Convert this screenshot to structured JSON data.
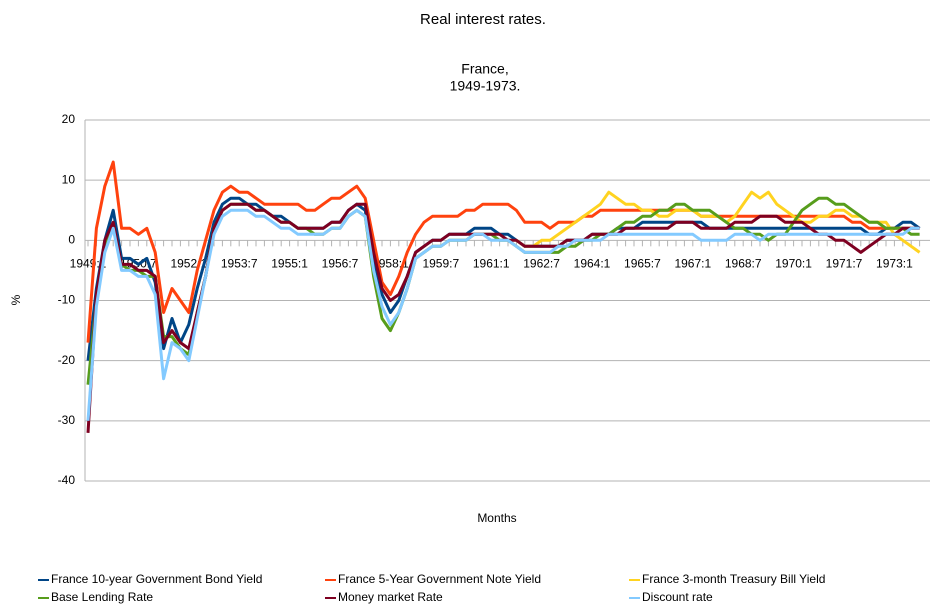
{
  "chart_data": {
    "type": "line",
    "title": "Real interest rates.",
    "subtitle": [
      "France,",
      "1949-1973."
    ],
    "x_label": "Months",
    "y_label": "%",
    "categories": [
      "1949:1",
      null,
      null,
      null,
      null,
      null,
      "1950:7",
      null,
      null,
      null,
      null,
      null,
      "1952:1",
      null,
      null,
      null,
      null,
      null,
      "1953:7",
      null,
      null,
      null,
      null,
      null,
      "1955:1",
      null,
      null,
      null,
      null,
      null,
      "1956:7",
      null,
      null,
      null,
      null,
      null,
      "1958:1",
      null,
      null,
      null,
      null,
      null,
      "1959:7",
      null,
      null,
      null,
      null,
      null,
      "1961:1",
      null,
      null,
      null,
      null,
      null,
      "1962:7",
      null,
      null,
      null,
      null,
      null,
      "1964:1",
      null,
      null,
      null,
      null,
      null,
      "1965:7",
      null,
      null,
      null,
      null,
      null,
      "1967:1",
      null,
      null,
      null,
      null,
      null,
      "1968:7",
      null,
      null,
      null,
      null,
      null,
      "1970:1",
      null,
      null,
      null,
      null,
      null,
      "1971:7",
      null,
      null,
      null,
      null,
      null,
      "1973:1",
      null,
      null,
      null
    ],
    "ylim": [
      -40,
      20
    ],
    "yticks": [
      20,
      10,
      0,
      -10,
      -20,
      -30,
      -40
    ],
    "grid": true,
    "series": [
      {
        "name": "France 10-year Government Bond Yield",
        "color": "#004586",
        "values": [
          -20,
          -8,
          0,
          5,
          -3,
          -3,
          -4,
          -3,
          -7,
          -18,
          -13,
          -17,
          -14,
          -8,
          -3,
          3,
          6,
          7,
          7,
          6,
          6,
          5,
          4,
          4,
          3,
          2,
          2,
          2,
          2,
          3,
          3,
          5,
          6,
          5,
          -3,
          -9,
          -12,
          -10,
          -6,
          -2,
          -1,
          0,
          0,
          1,
          1,
          1,
          2,
          2,
          2,
          1,
          1,
          0,
          -1,
          -1,
          -1,
          -1,
          -1,
          0,
          0,
          0,
          1,
          1,
          1,
          2,
          2,
          2,
          3,
          3,
          3,
          3,
          3,
          3,
          3,
          3,
          2,
          2,
          2,
          2,
          2,
          2,
          2,
          2,
          2,
          2,
          2,
          2,
          2,
          2,
          2,
          2,
          2,
          2,
          2,
          1,
          1,
          2,
          2,
          3,
          3,
          2
        ]
      },
      {
        "name": "France 5-Year Government Note Yield",
        "color": "#ff420e",
        "values": [
          -17,
          2,
          9,
          13,
          2,
          2,
          1,
          2,
          -2,
          -12,
          -8,
          -10,
          -12,
          -5,
          0,
          5,
          8,
          9,
          8,
          8,
          7,
          6,
          6,
          6,
          6,
          6,
          5,
          5,
          6,
          7,
          7,
          8,
          9,
          7,
          0,
          -7,
          -9,
          -6,
          -2,
          1,
          3,
          4,
          4,
          4,
          4,
          5,
          5,
          6,
          6,
          6,
          6,
          5,
          3,
          3,
          3,
          2,
          3,
          3,
          3,
          4,
          4,
          5,
          5,
          5,
          5,
          5,
          5,
          5,
          5,
          5,
          5,
          5,
          5,
          4,
          4,
          4,
          4,
          4,
          4,
          4,
          4,
          4,
          4,
          4,
          4,
          4,
          4,
          4,
          4,
          4,
          4,
          3,
          3,
          2,
          2,
          2,
          2,
          2,
          2,
          2
        ]
      },
      {
        "name": "France 3-month Treasury Bill Yield",
        "color": "#ffd320",
        "values": [
          null,
          null,
          null,
          null,
          null,
          null,
          null,
          null,
          null,
          null,
          null,
          null,
          null,
          null,
          null,
          null,
          null,
          null,
          null,
          null,
          null,
          null,
          null,
          null,
          null,
          null,
          null,
          null,
          null,
          null,
          null,
          null,
          null,
          null,
          null,
          null,
          null,
          null,
          null,
          null,
          null,
          null,
          null,
          null,
          null,
          null,
          null,
          null,
          null,
          null,
          null,
          0,
          -1,
          -1,
          0,
          0,
          1,
          2,
          3,
          4,
          5,
          6,
          8,
          7,
          6,
          6,
          5,
          5,
          4,
          4,
          5,
          5,
          5,
          4,
          4,
          4,
          3,
          4,
          6,
          8,
          7,
          8,
          6,
          5,
          4,
          3,
          3,
          4,
          4,
          5,
          5,
          4,
          4,
          3,
          3,
          3,
          1,
          0,
          -1,
          -2
        ]
      },
      {
        "name": "Base Lending Rate",
        "color": "#579d1c",
        "values": [
          -24,
          -10,
          -1,
          2,
          -4,
          -5,
          -5,
          -6,
          -6,
          -16,
          -16,
          -18,
          -19,
          -12,
          -6,
          2,
          5,
          6,
          6,
          6,
          5,
          5,
          4,
          3,
          3,
          2,
          2,
          1,
          1,
          2,
          2,
          4,
          5,
          4,
          -6,
          -13,
          -15,
          -12,
          -8,
          -3,
          -2,
          -1,
          -1,
          0,
          0,
          0,
          1,
          1,
          1,
          0,
          0,
          -1,
          -2,
          -2,
          -2,
          -2,
          -2,
          -1,
          -1,
          0,
          0,
          1,
          1,
          2,
          3,
          3,
          4,
          4,
          5,
          5,
          6,
          6,
          5,
          5,
          5,
          4,
          3,
          2,
          2,
          1,
          1,
          0,
          1,
          1,
          3,
          5,
          6,
          7,
          7,
          6,
          6,
          5,
          4,
          3,
          3,
          2,
          2,
          2,
          1,
          1
        ]
      },
      {
        "name": "Money market Rate",
        "color": "#7e0021",
        "values": [
          -32,
          -9,
          0,
          3,
          -4,
          -4,
          -5,
          -5,
          -6,
          -17,
          -15,
          -17,
          -18,
          -12,
          -6,
          2,
          5,
          6,
          6,
          6,
          5,
          5,
          4,
          3,
          3,
          2,
          2,
          2,
          2,
          3,
          3,
          5,
          6,
          6,
          -2,
          -8,
          -10,
          -9,
          -6,
          -2,
          -1,
          0,
          0,
          1,
          1,
          1,
          1,
          1,
          1,
          1,
          0,
          0,
          -1,
          -1,
          -1,
          -1,
          -1,
          0,
          0,
          0,
          1,
          1,
          1,
          1,
          2,
          2,
          2,
          2,
          2,
          2,
          3,
          3,
          3,
          2,
          2,
          2,
          2,
          3,
          3,
          3,
          4,
          4,
          4,
          3,
          3,
          3,
          2,
          1,
          1,
          0,
          0,
          -1,
          -2,
          -1,
          0,
          1,
          1,
          2,
          2,
          2
        ]
      },
      {
        "name": "Discount rate",
        "color": "#83caff",
        "values": [
          -30,
          -11,
          -2,
          2,
          -5,
          -5,
          -6,
          -6,
          -9,
          -23,
          -17,
          -18,
          -20,
          -13,
          -6,
          1,
          4,
          5,
          5,
          5,
          4,
          4,
          3,
          2,
          2,
          1,
          1,
          1,
          1,
          2,
          2,
          4,
          5,
          4,
          -5,
          -11,
          -14,
          -12,
          -8,
          -3,
          -2,
          -1,
          -1,
          0,
          0,
          0,
          1,
          1,
          0,
          0,
          0,
          -1,
          -2,
          -2,
          -2,
          -2,
          -1,
          -1,
          0,
          0,
          0,
          0,
          1,
          1,
          1,
          1,
          1,
          1,
          1,
          1,
          1,
          1,
          1,
          0,
          0,
          0,
          0,
          1,
          1,
          1,
          0,
          1,
          1,
          1,
          1,
          1,
          1,
          1,
          1,
          1,
          1,
          1,
          1,
          1,
          1,
          1,
          1,
          1,
          2,
          2
        ]
      }
    ]
  }
}
